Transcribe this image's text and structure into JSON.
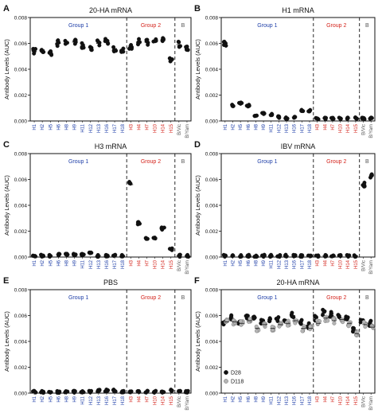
{
  "figure": {
    "ylabel": "Antibody Levels (AUC)",
    "yticks": [
      "0.000",
      "0.002",
      "0.004",
      "0.006",
      "0.008"
    ],
    "colors": {
      "group1": "#1f3fa8",
      "group2": "#d4241c",
      "b": "#555555",
      "marker": "#111111",
      "marker_alt": "#b5b5b5"
    }
  },
  "chart_data": [
    {
      "type": "scatter",
      "panel_letter": "A",
      "title": "20-HA mRNA",
      "ylabel": "Antibody Levels (AUC)",
      "ylim": [
        0,
        0.008
      ],
      "categories": [
        "H1",
        "H2",
        "H5",
        "H6",
        "H8",
        "H9",
        "H11",
        "H12",
        "H13",
        "H16",
        "H17",
        "H18",
        "H3",
        "H4",
        "H7",
        "H10",
        "H14",
        "H15",
        "B/Vic",
        "B/Yam"
      ],
      "groups": [
        {
          "label": "Group 1",
          "start": 0,
          "end": 11
        },
        {
          "label": "Group 2",
          "start": 12,
          "end": 17
        },
        {
          "label": "B",
          "start": 18,
          "end": 19
        }
      ],
      "series": [
        {
          "values": [
            0.0054,
            0.0055,
            0.0053,
            0.006,
            0.0061,
            0.0061,
            0.0058,
            0.0057,
            0.006,
            0.0062,
            0.0056,
            0.0054,
            0.0058,
            0.0061,
            0.0061,
            0.0062,
            0.0062,
            0.0048,
            0.0059,
            0.0056
          ]
        }
      ]
    },
    {
      "type": "scatter",
      "panel_letter": "B",
      "title": "H1 mRNA",
      "ylabel": "Antibody Levels (AUC)",
      "ylim": [
        0,
        0.008
      ],
      "categories": [
        "H1",
        "H2",
        "H5",
        "H6",
        "H8",
        "H9",
        "H11",
        "H12",
        "H13",
        "H16",
        "H17",
        "H18",
        "H3",
        "H4",
        "H7",
        "H10",
        "H14",
        "H15",
        "B/Vic",
        "B/Yam"
      ],
      "groups": [
        {
          "label": "Group 1",
          "start": 0,
          "end": 11
        },
        {
          "label": "Group 2",
          "start": 12,
          "end": 17
        },
        {
          "label": "B",
          "start": 18,
          "end": 19
        }
      ],
      "series": [
        {
          "values": [
            0.006,
            0.0012,
            0.0014,
            0.0012,
            0.0004,
            0.0006,
            0.0005,
            0.0003,
            0.0002,
            0.0003,
            0.0008,
            0.0008,
            0.0002,
            0.0002,
            0.0002,
            0.0002,
            0.0002,
            0.0002,
            0.0002,
            0.0002
          ]
        }
      ]
    },
    {
      "type": "scatter",
      "panel_letter": "C",
      "title": "H3 mRNA",
      "ylabel": "Antibody Levels (AUC)",
      "ylim": [
        0,
        0.008
      ],
      "categories": [
        "H1",
        "H2",
        "H5",
        "H6",
        "H8",
        "H9",
        "H11",
        "H12",
        "H13",
        "H16",
        "H17",
        "H18",
        "H3",
        "H4",
        "H7",
        "H10",
        "H14",
        "H15",
        "B/Vic",
        "B/Yam"
      ],
      "groups": [
        {
          "label": "Group 1",
          "start": 0,
          "end": 11
        },
        {
          "label": "Group 2",
          "start": 12,
          "end": 17
        },
        {
          "label": "B",
          "start": 18,
          "end": 19
        }
      ],
      "series": [
        {
          "values": [
            0.0001,
            0.0001,
            0.0001,
            0.0002,
            0.0002,
            0.0002,
            0.0002,
            0.0003,
            0.0001,
            0.0001,
            0.0001,
            0.0001,
            0.0056,
            0.0026,
            0.0014,
            0.0015,
            0.0022,
            0.0006,
            0.0001,
            0.0001
          ]
        }
      ]
    },
    {
      "type": "scatter",
      "panel_letter": "D",
      "title": "IBV mRNA",
      "ylabel": "Antibody Levels (AUC)",
      "ylim": [
        0,
        0.008
      ],
      "categories": [
        "H1",
        "H2",
        "H5",
        "H6",
        "H8",
        "H9",
        "H11",
        "H12",
        "H13",
        "H16",
        "H17",
        "H18",
        "H3",
        "H4",
        "H7",
        "H10",
        "H14",
        "H15",
        "B/Vic",
        "B/Yam"
      ],
      "groups": [
        {
          "label": "Group 1",
          "start": 0,
          "end": 11
        },
        {
          "label": "Group 2",
          "start": 12,
          "end": 17
        },
        {
          "label": "B",
          "start": 18,
          "end": 19
        }
      ],
      "series": [
        {
          "values": [
            0.0001,
            0.0001,
            0.0001,
            0.0001,
            0.0001,
            0.0001,
            0.0001,
            0.0001,
            0.0001,
            0.0001,
            0.0001,
            0.0001,
            0.0001,
            0.0001,
            0.0001,
            0.0001,
            0.0001,
            0.0001,
            0.0056,
            0.0062
          ]
        }
      ]
    },
    {
      "type": "scatter",
      "panel_letter": "E",
      "title": "PBS",
      "ylabel": "Antibody Levels (AUC)",
      "ylim": [
        0,
        0.008
      ],
      "categories": [
        "H1",
        "H2",
        "H5",
        "H6",
        "H8",
        "H9",
        "H11",
        "H12",
        "H13",
        "H16",
        "H17",
        "H18",
        "H3",
        "H4",
        "H7",
        "H10",
        "H14",
        "H15",
        "B/Vic",
        "B/Yam"
      ],
      "groups": [
        {
          "label": "Group 1",
          "start": 0,
          "end": 11
        },
        {
          "label": "Group 2",
          "start": 12,
          "end": 17
        },
        {
          "label": "B",
          "start": 18,
          "end": 19
        }
      ],
      "series": [
        {
          "values": [
            0.0001,
            0.0001,
            0.0001,
            0.0001,
            0.0001,
            0.0001,
            0.0001,
            0.0001,
            0.0002,
            0.0002,
            0.0002,
            0.0001,
            0.0001,
            0.0001,
            0.0001,
            0.0001,
            0.0001,
            0.0002,
            0.0001,
            0.0001
          ]
        }
      ]
    },
    {
      "type": "scatter",
      "panel_letter": "F",
      "title": "20-HA mRNA",
      "ylabel": "Antibody Levels (AUC)",
      "ylim": [
        0,
        0.008
      ],
      "categories": [
        "H1",
        "H2",
        "H5",
        "H6",
        "H8",
        "H9",
        "H11",
        "H12",
        "H13",
        "H16",
        "H17",
        "H18",
        "H3",
        "H4",
        "H7",
        "H10",
        "H14",
        "H15",
        "B/Vic",
        "B/Yam"
      ],
      "groups": [
        {
          "label": "Group 1",
          "start": 0,
          "end": 11
        },
        {
          "label": "Group 2",
          "start": 12,
          "end": 17
        },
        {
          "label": "B",
          "start": 18,
          "end": 19
        }
      ],
      "legend": "bottom-left",
      "series": [
        {
          "name": "D28",
          "values": [
            0.0055,
            0.0058,
            0.0055,
            0.006,
            0.0058,
            0.0055,
            0.0057,
            0.0058,
            0.0056,
            0.006,
            0.0055,
            0.0052,
            0.0058,
            0.0062,
            0.0061,
            0.006,
            0.0059,
            0.0049,
            0.0056,
            0.0054
          ]
        },
        {
          "name": "D118",
          "values": [
            0.0055,
            0.0055,
            0.0054,
            0.0056,
            0.005,
            0.0053,
            0.005,
            0.0053,
            0.0054,
            0.0056,
            0.005,
            0.005,
            0.0054,
            0.0058,
            0.0056,
            0.0057,
            0.0054,
            0.0046,
            0.0053,
            0.0051
          ]
        }
      ]
    }
  ]
}
